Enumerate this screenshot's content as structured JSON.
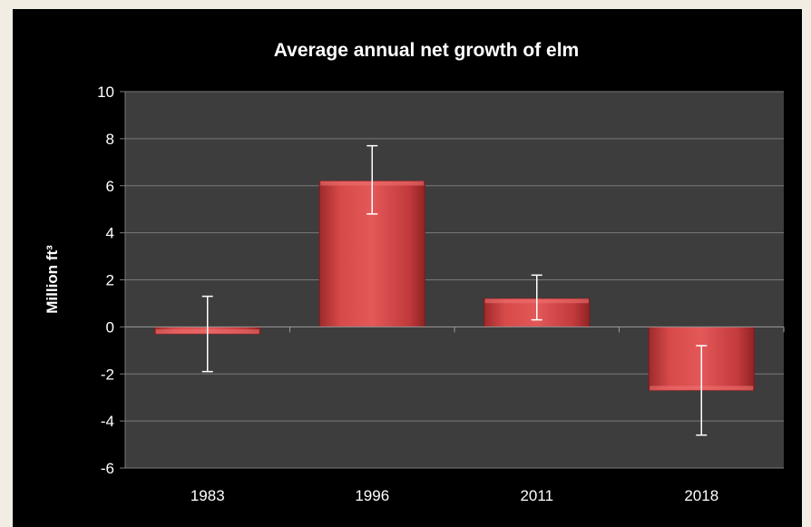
{
  "chart_data": {
    "type": "bar",
    "title": "Average annual net growth of elm",
    "ylabel": "Million ft³",
    "xlabel": "",
    "categories": [
      "1983",
      "1996",
      "2011",
      "2018"
    ],
    "values": [
      -0.3,
      6.2,
      1.2,
      -2.7
    ],
    "error_bars": [
      {
        "low": -1.9,
        "high": 1.3
      },
      {
        "low": 4.8,
        "high": 7.7
      },
      {
        "low": 0.3,
        "high": 2.2
      },
      {
        "low": -4.6,
        "high": -0.8
      }
    ],
    "ylim": [
      -6,
      10
    ],
    "yticks": [
      "-6",
      "-4",
      "-2",
      "0",
      "2",
      "4",
      "6",
      "8",
      "10"
    ],
    "ytick_values": [
      -6,
      -4,
      -2,
      0,
      2,
      4,
      6,
      8,
      10
    ],
    "grid": true,
    "legend": "none",
    "colors": {
      "bar": "#c0393b",
      "bar_light": "#e65a5a",
      "plot_background": "#3d3d3d",
      "frame_background": "#000000",
      "gridline": "#7a7a7a",
      "error_bar": "#ffffff",
      "text": "#ffffff"
    }
  }
}
